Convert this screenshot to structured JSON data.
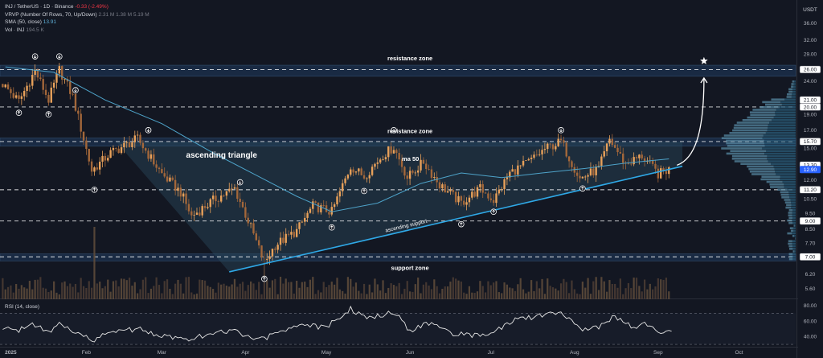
{
  "legend": {
    "symbol": "INJ / TetherUS · 1D · Binance",
    "change": "-0.33 (-2.49%)",
    "vrvp": "VRVP (Number Of Rows, 70, Up/Down)",
    "vrvp_vals": [
      "2.31 M",
      "1.38 M",
      "5.19 M"
    ],
    "sma": "SMA (50, close)",
    "sma_val": "13.91",
    "vol": "Vol · INJ",
    "vol_val": "194.5 K",
    "rsi": "RSI (14, close)"
  },
  "colors": {
    "background": "#131722",
    "up": "#e8a15a",
    "down": "#a3673a",
    "ma": "#4ea3c9",
    "support_line": "#2fa8e6",
    "zone_line": "#ffffff",
    "zone_fill": "#1e3a5f",
    "triangle_fill": "#2a4a5e",
    "price_tag": "#2962ff"
  },
  "chart_data": [
    {
      "type": "candlestick",
      "currency": "USDT",
      "x_ticks": [
        "2025",
        "Feb",
        "Mar",
        "Apr",
        "May",
        "Jun",
        "Jul",
        "Aug",
        "Sep",
        "Oct"
      ],
      "y_ticks": [
        5.6,
        6.2,
        7.0,
        7.7,
        8.5,
        9.5,
        10.5,
        12.0,
        15.0,
        17.0,
        19.0,
        21.0,
        24.0,
        26.0,
        29.0,
        32.0,
        36.0
      ],
      "y_tags": [
        15.7,
        13.3,
        12.9,
        11.2,
        9.0,
        7.0,
        20.0,
        21.0,
        26.0
      ],
      "current_price": 12.9,
      "ylim": [
        5.2,
        40
      ],
      "log_scale": true,
      "price_path": [
        {
          "x": "2025-01-01",
          "y": 23.5
        },
        {
          "x": "2025-01-07",
          "y": 20.8
        },
        {
          "x": "2025-01-13",
          "y": 25.8
        },
        {
          "x": "2025-01-18",
          "y": 21.0
        },
        {
          "x": "2025-01-22",
          "y": 26.0
        },
        {
          "x": "2025-01-27",
          "y": 21.5
        },
        {
          "x": "2025-02-03",
          "y": 12.8
        },
        {
          "x": "2025-02-10",
          "y": 14.5
        },
        {
          "x": "2025-02-20",
          "y": 16.0
        },
        {
          "x": "2025-03-01",
          "y": 12.5
        },
        {
          "x": "2025-03-08",
          "y": 11.0
        },
        {
          "x": "2025-03-12",
          "y": 9.3
        },
        {
          "x": "2025-03-20",
          "y": 10.4
        },
        {
          "x": "2025-03-28",
          "y": 11.3
        },
        {
          "x": "2025-04-03",
          "y": 8.6
        },
        {
          "x": "2025-04-08",
          "y": 6.7
        },
        {
          "x": "2025-04-12",
          "y": 7.6
        },
        {
          "x": "2025-04-20",
          "y": 8.4
        },
        {
          "x": "2025-04-26",
          "y": 10.0
        },
        {
          "x": "2025-05-03",
          "y": 9.6
        },
        {
          "x": "2025-05-10",
          "y": 13.2
        },
        {
          "x": "2025-05-15",
          "y": 12.3
        },
        {
          "x": "2025-05-22",
          "y": 14.3
        },
        {
          "x": "2025-05-26",
          "y": 15.1
        },
        {
          "x": "2025-05-31",
          "y": 12.2
        },
        {
          "x": "2025-06-06",
          "y": 13.6
        },
        {
          "x": "2025-06-12",
          "y": 11.6
        },
        {
          "x": "2025-06-20",
          "y": 10.2
        },
        {
          "x": "2025-06-27",
          "y": 11.3
        },
        {
          "x": "2025-07-02",
          "y": 10.4
        },
        {
          "x": "2025-07-08",
          "y": 12.6
        },
        {
          "x": "2025-07-15",
          "y": 13.6
        },
        {
          "x": "2025-07-21",
          "y": 14.9
        },
        {
          "x": "2025-07-27",
          "y": 15.7
        },
        {
          "x": "2025-08-03",
          "y": 12.1
        },
        {
          "x": "2025-08-10",
          "y": 13.0
        },
        {
          "x": "2025-08-14",
          "y": 15.9
        },
        {
          "x": "2025-08-20",
          "y": 13.4
        },
        {
          "x": "2025-08-26",
          "y": 14.2
        },
        {
          "x": "2025-09-01",
          "y": 12.5
        },
        {
          "x": "2025-09-05",
          "y": 12.9
        }
      ],
      "ma50": [
        {
          "x": "2025-01-02",
          "y": 26.5
        },
        {
          "x": "2025-01-20",
          "y": 25.5
        },
        {
          "x": "2025-02-08",
          "y": 21.0
        },
        {
          "x": "2025-03-01",
          "y": 17.8
        },
        {
          "x": "2025-03-20",
          "y": 14.5
        },
        {
          "x": "2025-04-05",
          "y": 12.4
        },
        {
          "x": "2025-04-20",
          "y": 10.7
        },
        {
          "x": "2025-05-03",
          "y": 9.6
        },
        {
          "x": "2025-05-20",
          "y": 10.2
        },
        {
          "x": "2025-06-05",
          "y": 11.7
        },
        {
          "x": "2025-06-20",
          "y": 12.6
        },
        {
          "x": "2025-07-05",
          "y": 12.2
        },
        {
          "x": "2025-07-20",
          "y": 12.6
        },
        {
          "x": "2025-08-05",
          "y": 13.0
        },
        {
          "x": "2025-08-20",
          "y": 13.5
        },
        {
          "x": "2025-09-05",
          "y": 13.9
        }
      ],
      "zones": [
        {
          "label": "resistance zone",
          "low": 24.8,
          "high": 26.8
        },
        {
          "label": "resistance zone",
          "low": 15.2,
          "high": 16.1
        },
        {
          "label": "support zone",
          "low": 6.8,
          "high": 7.15
        }
      ],
      "dashed_levels": [
        26.0,
        20.0,
        15.7,
        11.2,
        9.0,
        7.0
      ],
      "ascending_support": [
        {
          "x": "2025-03-26",
          "y": 6.3
        },
        {
          "x": "2025-09-10",
          "y": 13.2
        }
      ],
      "triangle_top": 15.7,
      "triangle_label": "ascending triangle",
      "support_label": "ascending support",
      "ma_label": "ma 50",
      "projection_arrow": {
        "from": {
          "x": "2025-09-08",
          "y": 13.3
        },
        "to": {
          "x": "2025-09-18",
          "y": 24.5
        }
      },
      "markers_down": [
        {
          "x": "2025-01-13",
          "y": 28.5
        },
        {
          "x": "2025-01-22",
          "y": 28.5
        },
        {
          "x": "2025-01-28",
          "y": 22.5
        },
        {
          "x": "2025-02-24",
          "y": 17.0
        },
        {
          "x": "2025-03-30",
          "y": 11.8
        },
        {
          "x": "2025-05-26",
          "y": 17.0
        },
        {
          "x": "2025-07-27",
          "y": 17.0
        }
      ],
      "markers_up": [
        {
          "x": "2025-01-07",
          "y": 19.2
        },
        {
          "x": "2025-01-18",
          "y": 19.0
        },
        {
          "x": "2025-02-04",
          "y": 11.2
        },
        {
          "x": "2025-04-08",
          "y": 6.0
        },
        {
          "x": "2025-05-03",
          "y": 8.6
        },
        {
          "x": "2025-05-15",
          "y": 11.1
        },
        {
          "x": "2025-06-20",
          "y": 8.8
        },
        {
          "x": "2025-07-02",
          "y": 9.6
        },
        {
          "x": "2025-08-04",
          "y": 11.3
        }
      ],
      "star": {
        "x": "2025-09-18",
        "y": 27.6
      }
    },
    {
      "type": "line",
      "title": "RSI (14, close)",
      "y_ticks": [
        40.0,
        60.0,
        80.0
      ],
      "ylim": [
        28,
        86
      ],
      "levels": [
        70,
        30
      ],
      "values": [
        {
          "x": "2025-01-01",
          "y": 52
        },
        {
          "x": "2025-01-06",
          "y": 46
        },
        {
          "x": "2025-01-12",
          "y": 58
        },
        {
          "x": "2025-01-18",
          "y": 44
        },
        {
          "x": "2025-01-22",
          "y": 56
        },
        {
          "x": "2025-01-28",
          "y": 44
        },
        {
          "x": "2025-02-04",
          "y": 36
        },
        {
          "x": "2025-02-10",
          "y": 45
        },
        {
          "x": "2025-02-20",
          "y": 50
        },
        {
          "x": "2025-03-01",
          "y": 41
        },
        {
          "x": "2025-03-10",
          "y": 36
        },
        {
          "x": "2025-03-20",
          "y": 44
        },
        {
          "x": "2025-03-28",
          "y": 47
        },
        {
          "x": "2025-04-06",
          "y": 35
        },
        {
          "x": "2025-04-14",
          "y": 46
        },
        {
          "x": "2025-04-22",
          "y": 55
        },
        {
          "x": "2025-05-01",
          "y": 52
        },
        {
          "x": "2025-05-10",
          "y": 76
        },
        {
          "x": "2025-05-16",
          "y": 63
        },
        {
          "x": "2025-05-26",
          "y": 72
        },
        {
          "x": "2025-06-01",
          "y": 48
        },
        {
          "x": "2025-06-08",
          "y": 58
        },
        {
          "x": "2025-06-16",
          "y": 44
        },
        {
          "x": "2025-06-24",
          "y": 41
        },
        {
          "x": "2025-07-01",
          "y": 44
        },
        {
          "x": "2025-07-10",
          "y": 62
        },
        {
          "x": "2025-07-18",
          "y": 66
        },
        {
          "x": "2025-07-27",
          "y": 70
        },
        {
          "x": "2025-08-04",
          "y": 47
        },
        {
          "x": "2025-08-12",
          "y": 55
        },
        {
          "x": "2025-08-16",
          "y": 67
        },
        {
          "x": "2025-08-22",
          "y": 52
        },
        {
          "x": "2025-08-28",
          "y": 56
        },
        {
          "x": "2025-09-02",
          "y": 45
        },
        {
          "x": "2025-09-06",
          "y": 47
        }
      ]
    }
  ]
}
